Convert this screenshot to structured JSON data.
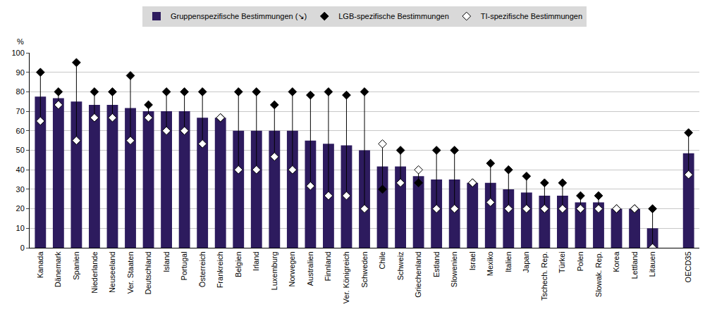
{
  "chart_data": {
    "type": "bar",
    "ylabel": "%",
    "categories": [
      "Kanada",
      "Dänemark",
      "Spanien",
      "Niederlande",
      "Neuseeland",
      "Ver. Staaten",
      "Deutschland",
      "Island",
      "Portugal",
      "Österreich",
      "Frankreich",
      "Belgien",
      "Irland",
      "Luxemburg",
      "Norwegen",
      "Australien",
      "Finnland",
      "Ver. Königreich",
      "Schweden",
      "Chile",
      "Schweiz",
      "Griechenland",
      "Estland",
      "Slowenien",
      "Israel",
      "Mexiko",
      "Italien",
      "Japan",
      "Tschech. Rep.",
      "Türkei",
      "Polen",
      "Slowak. Rep.",
      "Korea",
      "Lettland",
      "Litauen",
      null,
      "OECD35"
    ],
    "series": [
      {
        "name": "Gruppenspezifische Bestimmungen (↘)",
        "type": "bar",
        "color": "#2d1b5e",
        "values": [
          77.5,
          76.7,
          75,
          73.3,
          73.3,
          71.7,
          70,
          70,
          70,
          66.7,
          66.7,
          60,
          60,
          60,
          60,
          55,
          53.3,
          52.5,
          50,
          41.7,
          41.7,
          36.7,
          35,
          35,
          33.3,
          33.3,
          30,
          28.3,
          26.7,
          26.7,
          23.3,
          23.3,
          20,
          20,
          10,
          null,
          48.5
        ]
      },
      {
        "name": "LGB-spezifische Bestimmungen",
        "type": "scatter",
        "marker": "diamond",
        "color": "#000000",
        "values": [
          90,
          80,
          95,
          80,
          80,
          88.3,
          73.3,
          80,
          80,
          80,
          66.7,
          80,
          80,
          73.3,
          80,
          78.3,
          80,
          78.3,
          80,
          30,
          50,
          33.3,
          50,
          50,
          33.3,
          43.3,
          40,
          36.7,
          33.3,
          33.3,
          26.7,
          26.7,
          20,
          20,
          20,
          null,
          59
        ]
      },
      {
        "name": "TI-spezifische Bestimmungen",
        "type": "scatter",
        "marker": "diamond-open",
        "color": "#ffffff",
        "values": [
          65,
          73.3,
          55,
          66.7,
          66.7,
          55,
          66.7,
          60,
          60,
          53.3,
          66.7,
          40,
          40,
          46.7,
          40,
          31.7,
          26.7,
          26.7,
          20,
          53.3,
          33.3,
          40,
          20,
          20,
          33.3,
          23.3,
          20,
          20,
          20,
          20,
          20,
          20,
          20,
          20,
          0,
          null,
          37.5
        ]
      }
    ],
    "ylim": [
      0,
      100
    ],
    "yticks": [
      0,
      10,
      20,
      30,
      40,
      50,
      60,
      70,
      80,
      90,
      100
    ],
    "grid": true,
    "legend": "top"
  }
}
